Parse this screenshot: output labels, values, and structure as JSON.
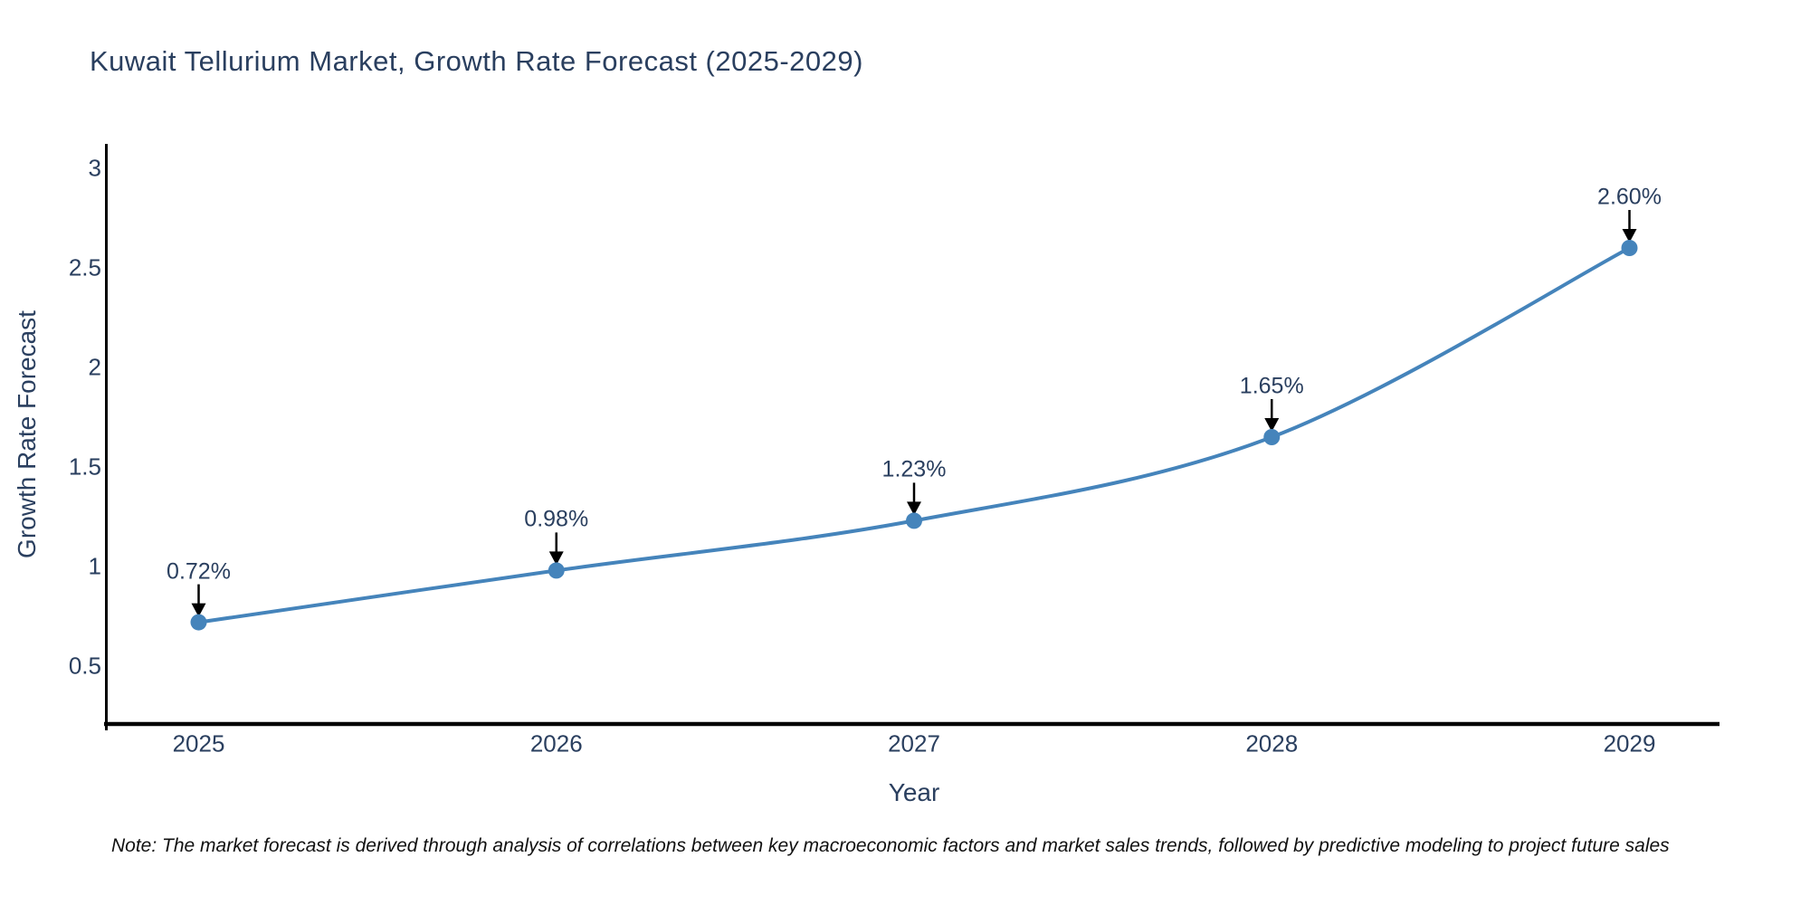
{
  "title": "Kuwait Tellurium Market, Growth Rate Forecast (2025-2029)",
  "note": "Note: The market forecast is derived through analysis of correlations between key macroeconomic factors and market sales trends, followed by predictive modeling to project future sales",
  "colors": {
    "line": "#4584bb",
    "marker": "#4584bb",
    "text": "#2a3f5f",
    "axis": "#000000",
    "arrow": "#000000",
    "note_text": "#111111",
    "background": "#ffffff"
  },
  "chart_data": {
    "type": "line",
    "title": "Kuwait Tellurium Market, Growth Rate Forecast (2025-2029)",
    "categories": [
      "2025",
      "2026",
      "2027",
      "2028",
      "2029"
    ],
    "x": [
      2025,
      2026,
      2027,
      2028,
      2029
    ],
    "values": [
      0.72,
      0.98,
      1.23,
      1.65,
      2.6
    ],
    "point_labels": [
      "0.72%",
      "0.98%",
      "1.23%",
      "1.65%",
      "2.60%"
    ],
    "xlabel": "Year",
    "ylabel": "Growth Rate Forecast",
    "ytick_values": [
      3,
      2.5,
      2,
      1.5,
      1,
      0.5
    ],
    "ytick_labels": [
      "3",
      "2.5",
      "2",
      "1.5",
      "1",
      "0.5"
    ],
    "xtick_labels": [
      "2025",
      "2026",
      "2027",
      "2028",
      "2029"
    ],
    "ylim": [
      0.21,
      3.12
    ],
    "grid": false,
    "legend": false,
    "line_shape": "spline",
    "annotation_arrows": true
  }
}
